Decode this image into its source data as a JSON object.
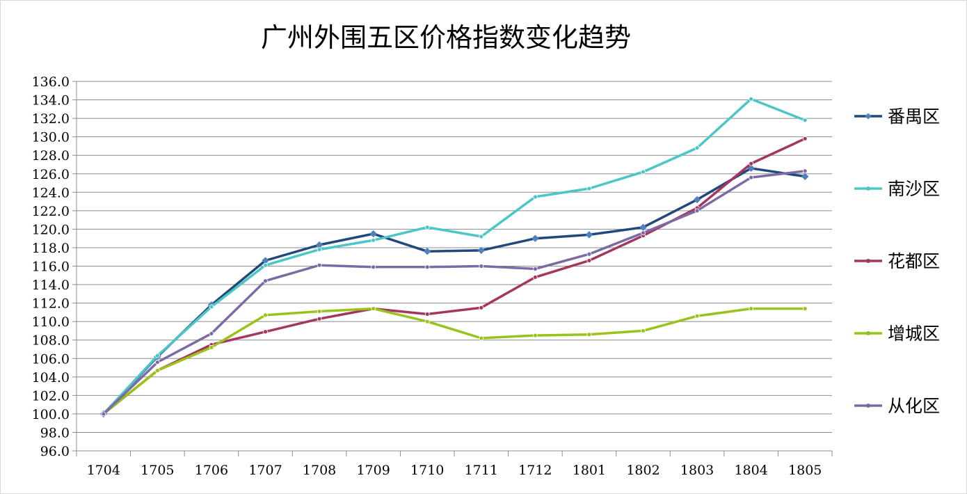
{
  "chart_data": {
    "type": "line",
    "title": "广州外围五区价格指数变化趋势",
    "categories": [
      "1704",
      "1705",
      "1706",
      "1707",
      "1708",
      "1709",
      "1710",
      "1711",
      "1712",
      "1801",
      "1802",
      "1803",
      "1804",
      "1805"
    ],
    "ylim": [
      96,
      136
    ],
    "ystep": 2,
    "grid": true,
    "legend_position": "right",
    "series": [
      {
        "name": "番禺区",
        "color": "#1f497d",
        "marker": "diamond",
        "values": [
          100.0,
          106.2,
          111.8,
          116.6,
          118.3,
          119.5,
          117.6,
          117.7,
          119.0,
          119.4,
          120.2,
          123.2,
          126.6,
          125.7
        ]
      },
      {
        "name": "南沙区",
        "color": "#4bc6c7",
        "marker": "dot",
        "values": [
          100.0,
          106.3,
          111.6,
          116.1,
          117.8,
          118.8,
          120.2,
          119.2,
          123.5,
          124.4,
          126.2,
          128.8,
          134.1,
          131.8
        ]
      },
      {
        "name": "花都区",
        "color": "#a5365e",
        "marker": "dot",
        "values": [
          100.0,
          104.7,
          107.5,
          108.9,
          110.3,
          111.4,
          110.8,
          111.5,
          114.8,
          116.6,
          119.3,
          122.3,
          127.1,
          129.8
        ]
      },
      {
        "name": "增城区",
        "color": "#99c31a",
        "marker": "dot",
        "values": [
          100.0,
          104.7,
          107.2,
          110.7,
          111.1,
          111.4,
          110.0,
          108.2,
          108.5,
          108.6,
          109.0,
          110.6,
          111.4,
          111.4
        ]
      },
      {
        "name": "从化区",
        "color": "#7b6aa6",
        "marker": "dot",
        "values": [
          100.0,
          105.6,
          108.7,
          114.4,
          116.1,
          115.9,
          115.9,
          116.0,
          115.7,
          117.3,
          119.6,
          122.0,
          125.6,
          126.3
        ]
      }
    ]
  }
}
